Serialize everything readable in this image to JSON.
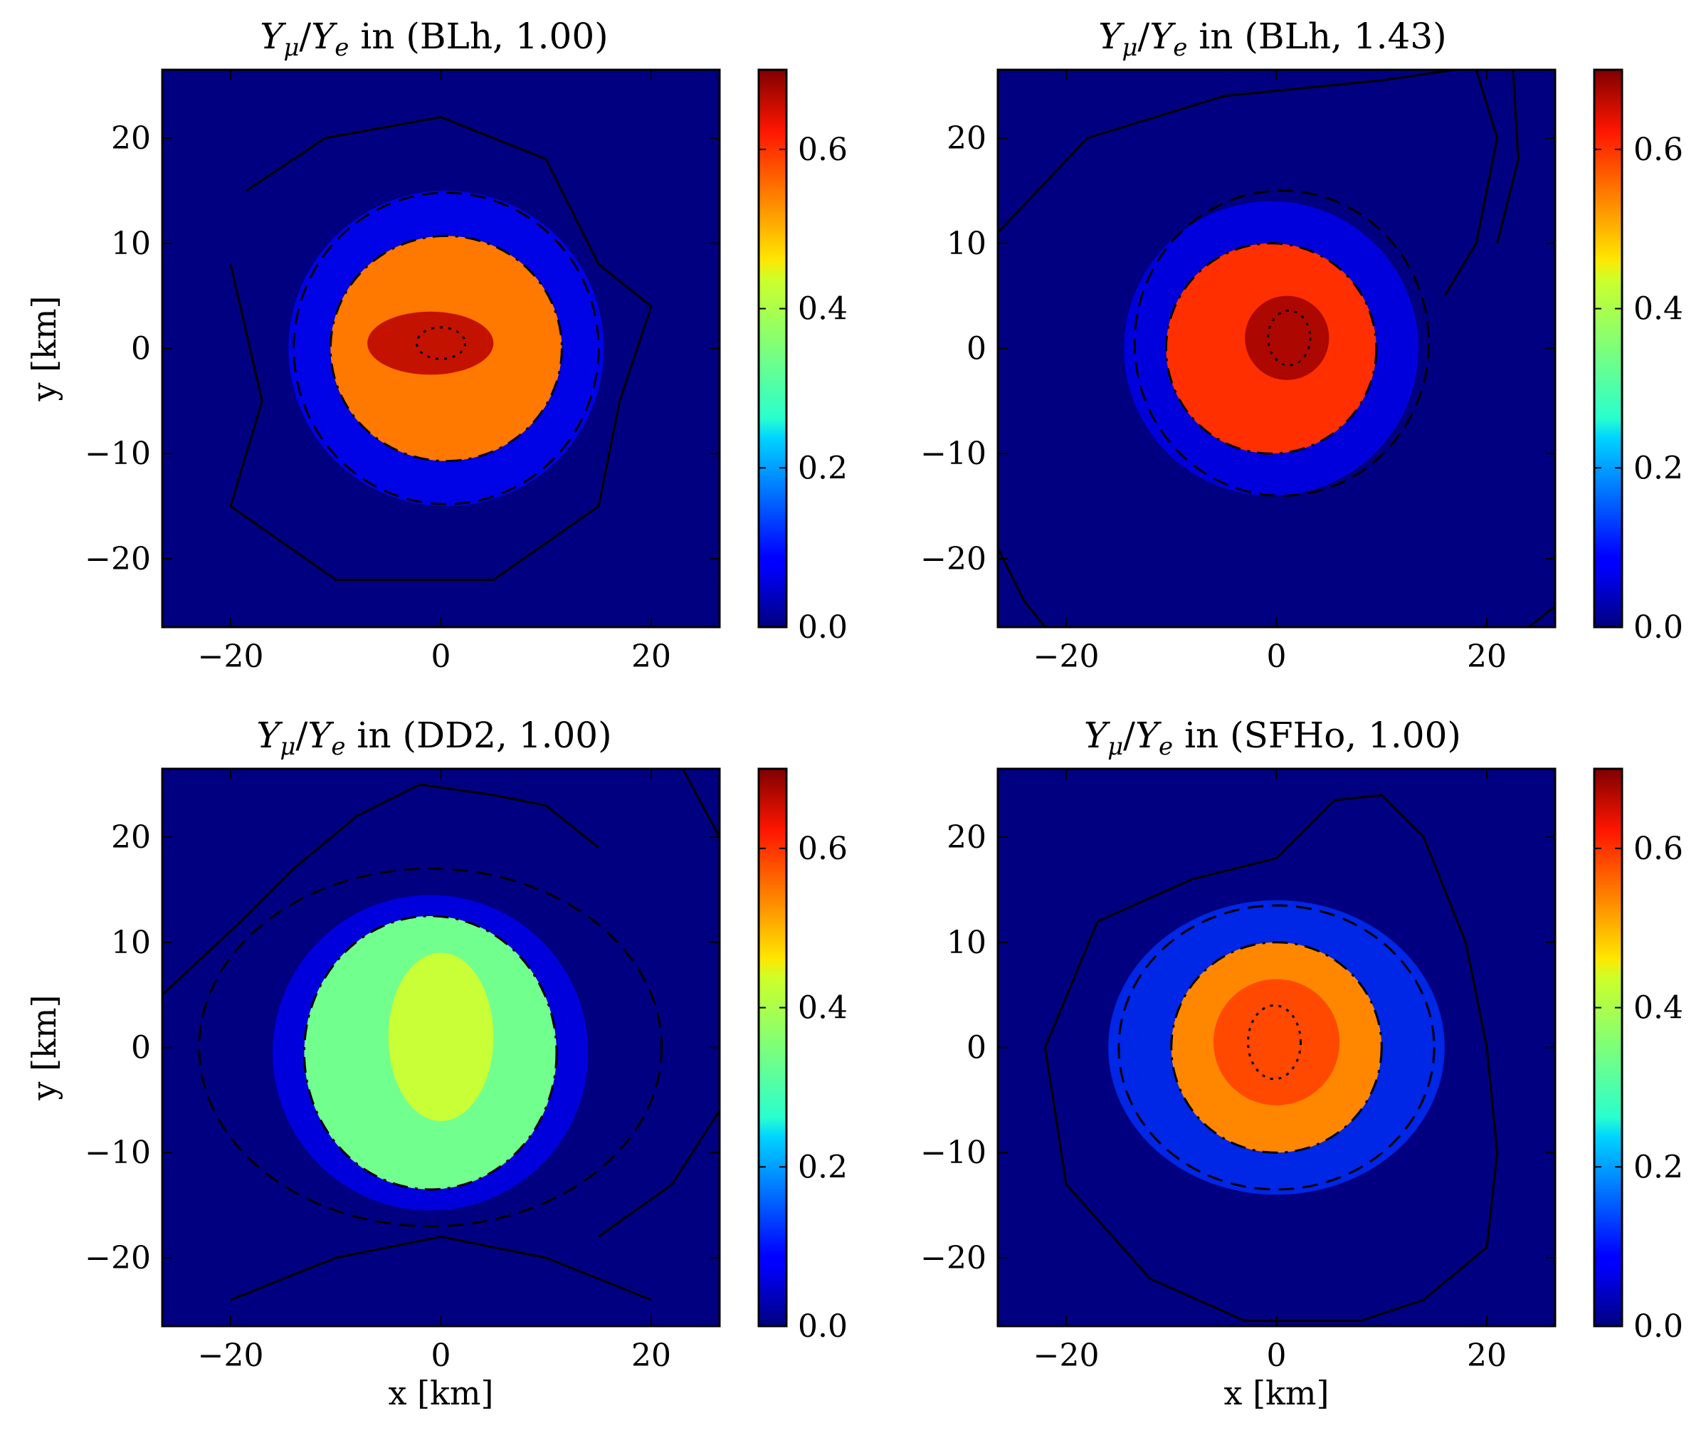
{
  "chart_data": [
    {
      "type": "heatmap",
      "title": {
        "q1": "Y",
        "s1": "μ",
        "q2": "Y",
        "s2": "e",
        "rest": " in (BLh, 1.00)"
      },
      "xlabel": "",
      "ylabel": "y [km]",
      "xlim": [
        -26.5,
        26.5
      ],
      "ylim": [
        -26.5,
        26.5
      ],
      "xticks": [
        -20,
        0,
        20
      ],
      "yticks": [
        -20,
        -10,
        0,
        10,
        20
      ],
      "xtick_labels": [
        "−20",
        "0",
        "20"
      ],
      "ytick_labels": [
        "−20",
        "−10",
        "0",
        "10",
        "20"
      ],
      "colorbar": {
        "range": [
          0.0,
          0.7
        ],
        "ticks": [
          0.0,
          0.2,
          0.4,
          0.6
        ],
        "tick_labels": [
          "0.0",
          "0.2",
          "0.4",
          "0.6"
        ],
        "colormap": "jet"
      },
      "core": {
        "cx": 0.5,
        "cy": 0.0,
        "rx": 11.0,
        "ry": 10.7,
        "value": 0.53
      },
      "hotspot": {
        "cx": -1.0,
        "cy": 0.5,
        "rx": 6.0,
        "ry": 3.0,
        "value": 0.66
      },
      "halo": {
        "rx": 15.0,
        "ry": 15.0,
        "value": 0.09
      },
      "contours": {
        "dashdot": {
          "cx": 0.5,
          "cy": 0.0,
          "rx": 11.0,
          "ry": 10.7
        },
        "dashed": {
          "cx": 0.5,
          "cy": 0.0,
          "rx": 14.5,
          "ry": 14.8
        },
        "dotted": {
          "cx": 0.0,
          "cy": 0.5,
          "rx": 2.3,
          "ry": 1.5
        },
        "solid_arcs": [
          [
            [
              -18.5,
              15.0
            ],
            [
              -11,
              20
            ],
            [
              0,
              22
            ],
            [
              10,
              18
            ],
            [
              15,
              8
            ],
            [
              20,
              4
            ],
            [
              17,
              -5
            ],
            [
              15,
              -15
            ],
            [
              5,
              -22
            ],
            [
              -10,
              -22
            ],
            [
              -20,
              -15
            ],
            [
              -17,
              -5
            ],
            [
              -20,
              8
            ]
          ]
        ]
      }
    },
    {
      "type": "heatmap",
      "title": {
        "q1": "Y",
        "s1": "μ",
        "q2": "Y",
        "s2": "e",
        "rest": " in (BLh, 1.43)"
      },
      "xlabel": "",
      "ylabel": "",
      "xlim": [
        -26.5,
        26.5
      ],
      "ylim": [
        -26.5,
        26.5
      ],
      "xticks": [
        -20,
        0,
        20
      ],
      "yticks": [
        -20,
        -10,
        0,
        10,
        20
      ],
      "xtick_labels": [
        "−20",
        "0",
        "20"
      ],
      "ytick_labels": [
        "−20",
        "−10",
        "0",
        "10",
        "20"
      ],
      "colorbar": {
        "range": [
          0.0,
          0.7
        ],
        "ticks": [
          0.0,
          0.2,
          0.4,
          0.6
        ],
        "tick_labels": [
          "0.0",
          "0.2",
          "0.4",
          "0.6"
        ],
        "colormap": "jet"
      },
      "core": {
        "cx": -0.5,
        "cy": 0.0,
        "rx": 10.0,
        "ry": 10.0,
        "value": 0.58
      },
      "hotspot": {
        "cx": 1.0,
        "cy": 1.0,
        "rx": 4.0,
        "ry": 4.0,
        "value": 0.68
      },
      "halo": {
        "rx": 14.0,
        "ry": 14.0,
        "value": 0.08
      },
      "contours": {
        "dashdot": {
          "cx": -0.5,
          "cy": 0.0,
          "rx": 10.0,
          "ry": 10.0
        },
        "dashed": {
          "cx": 0.5,
          "cy": 0.5,
          "rx": 14.0,
          "ry": 14.5
        },
        "dotted": {
          "cx": 1.2,
          "cy": 1.0,
          "rx": 2.0,
          "ry": 2.6
        },
        "solid_arcs": [
          [
            [
              -26.5,
              11.0
            ],
            [
              -18,
              20
            ],
            [
              -5,
              24
            ],
            [
              10,
              25.5
            ],
            [
              17,
              26.5
            ]
          ],
          [
            [
              19.0,
              26.5
            ],
            [
              21,
              20
            ],
            [
              19,
              10
            ],
            [
              16,
              5
            ]
          ],
          [
            [
              22.5,
              26.5
            ],
            [
              23,
              18
            ],
            [
              21,
              10
            ]
          ],
          [
            [
              -26.5,
              -19.0
            ],
            [
              -24,
              -24
            ],
            [
              -22,
              -26.5
            ]
          ],
          [
            [
              24.0,
              -26.5
            ],
            [
              26.5,
              -24.5
            ]
          ]
        ]
      }
    },
    {
      "type": "heatmap",
      "title": {
        "q1": "Y",
        "s1": "μ",
        "q2": "Y",
        "s2": "e",
        "rest": " in (DD2, 1.00)"
      },
      "xlabel": "x [km]",
      "ylabel": "y [km]",
      "xlim": [
        -26.5,
        26.5
      ],
      "ylim": [
        -26.5,
        26.5
      ],
      "xticks": [
        -20,
        0,
        20
      ],
      "yticks": [
        -20,
        -10,
        0,
        10,
        20
      ],
      "xtick_labels": [
        "−20",
        "0",
        "20"
      ],
      "ytick_labels": [
        "−20",
        "−10",
        "0",
        "10",
        "20"
      ],
      "colorbar": {
        "range": [
          0.0,
          0.7
        ],
        "ticks": [
          0.0,
          0.2,
          0.4,
          0.6
        ],
        "tick_labels": [
          "0.0",
          "0.2",
          "0.4",
          "0.6"
        ],
        "colormap": "jet"
      },
      "core": {
        "cx": -1.0,
        "cy": -0.5,
        "rx": 12.0,
        "ry": 13.0,
        "value": 0.34
      },
      "hotspot": {
        "cx": 0.0,
        "cy": 1.0,
        "rx": 5.0,
        "ry": 8.0,
        "value": 0.41
      },
      "halo": {
        "rx": 15.0,
        "ry": 15.0,
        "value": 0.08
      },
      "contours": {
        "dashdot": {
          "cx": -1.0,
          "cy": -0.5,
          "rx": 12.0,
          "ry": 13.0
        },
        "dashed": {
          "cx": -1.0,
          "cy": 0.0,
          "rx": 22.0,
          "ry": 17.0
        },
        "dotted": null,
        "solid_arcs": [
          [
            [
              -26.5,
              5.0
            ],
            [
              -19,
              12
            ],
            [
              -14,
              17
            ],
            [
              -8,
              22
            ],
            [
              -2,
              25
            ],
            [
              5,
              24
            ],
            [
              10,
              23
            ],
            [
              15,
              19
            ]
          ],
          [
            [
              23.0,
              26.5
            ],
            [
              26.5,
              20.0
            ]
          ],
          [
            [
              -20.0,
              -24.0
            ],
            [
              -10,
              -20
            ],
            [
              0,
              -18
            ],
            [
              10,
              -20
            ],
            [
              20,
              -24
            ]
          ],
          [
            [
              26.5,
              -6.0
            ],
            [
              22,
              -13
            ],
            [
              15,
              -18
            ]
          ]
        ]
      }
    },
    {
      "type": "heatmap",
      "title": {
        "q1": "Y",
        "s1": "μ",
        "q2": "Y",
        "s2": "e",
        "rest": " in (SFHo, 1.00)"
      },
      "xlabel": "x [km]",
      "ylabel": "",
      "xlim": [
        -26.5,
        26.5
      ],
      "ylim": [
        -26.5,
        26.5
      ],
      "xticks": [
        -20,
        0,
        20
      ],
      "yticks": [
        -20,
        -10,
        0,
        10,
        20
      ],
      "xtick_labels": [
        "−20",
        "0",
        "20"
      ],
      "ytick_labels": [
        "−20",
        "−10",
        "0",
        "10",
        "20"
      ],
      "colorbar": {
        "range": [
          0.0,
          0.7
        ],
        "ticks": [
          0.0,
          0.2,
          0.4,
          0.6
        ],
        "tick_labels": [
          "0.0",
          "0.2",
          "0.4",
          "0.6"
        ],
        "colormap": "jet"
      },
      "core": {
        "cx": 0.0,
        "cy": 0.0,
        "rx": 10.0,
        "ry": 10.0,
        "value": 0.52
      },
      "hotspot": {
        "cx": 0.0,
        "cy": 0.5,
        "rx": 6.0,
        "ry": 6.0,
        "value": 0.57
      },
      "halo": {
        "rx": 16.0,
        "ry": 14.0,
        "value": 0.12
      },
      "contours": {
        "dashdot": {
          "cx": 0.0,
          "cy": 0.0,
          "rx": 10.0,
          "ry": 10.0
        },
        "dashed": {
          "cx": 0.0,
          "cy": 0.0,
          "rx": 15.0,
          "ry": 13.5
        },
        "dotted": {
          "cx": -0.2,
          "cy": 0.5,
          "rx": 2.5,
          "ry": 3.5
        },
        "solid_arcs": [
          [
            [
              5.5,
              23.5
            ],
            [
              0,
              18
            ],
            [
              -8,
              16
            ],
            [
              -17,
              12
            ],
            [
              -22,
              0
            ],
            [
              -20,
              -13
            ],
            [
              -12,
              -22
            ],
            [
              -3,
              -26
            ],
            [
              8,
              -26
            ],
            [
              14,
              -24
            ],
            [
              20,
              -19
            ],
            [
              21,
              -10
            ],
            [
              20,
              0
            ],
            [
              18,
              10
            ],
            [
              14,
              20
            ],
            [
              10,
              24
            ],
            [
              5.5,
              23.5
            ]
          ]
        ]
      }
    }
  ]
}
